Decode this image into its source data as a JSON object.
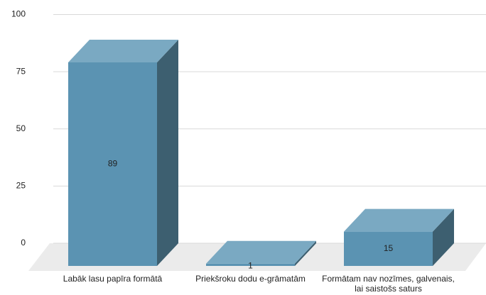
{
  "chart_data": {
    "type": "bar3d",
    "categories": [
      "Labāk lasu papīra formātā",
      "Priekšroku dodu e-grāmatām",
      "Formātam nav nozīmes, galvenais, lai saistošs saturs"
    ],
    "values": [
      89,
      1,
      15
    ],
    "color": "#5b93b2",
    "ylim": [
      0,
      100
    ],
    "yticks": [
      0,
      25,
      50,
      75,
      100
    ],
    "grid": true
  }
}
